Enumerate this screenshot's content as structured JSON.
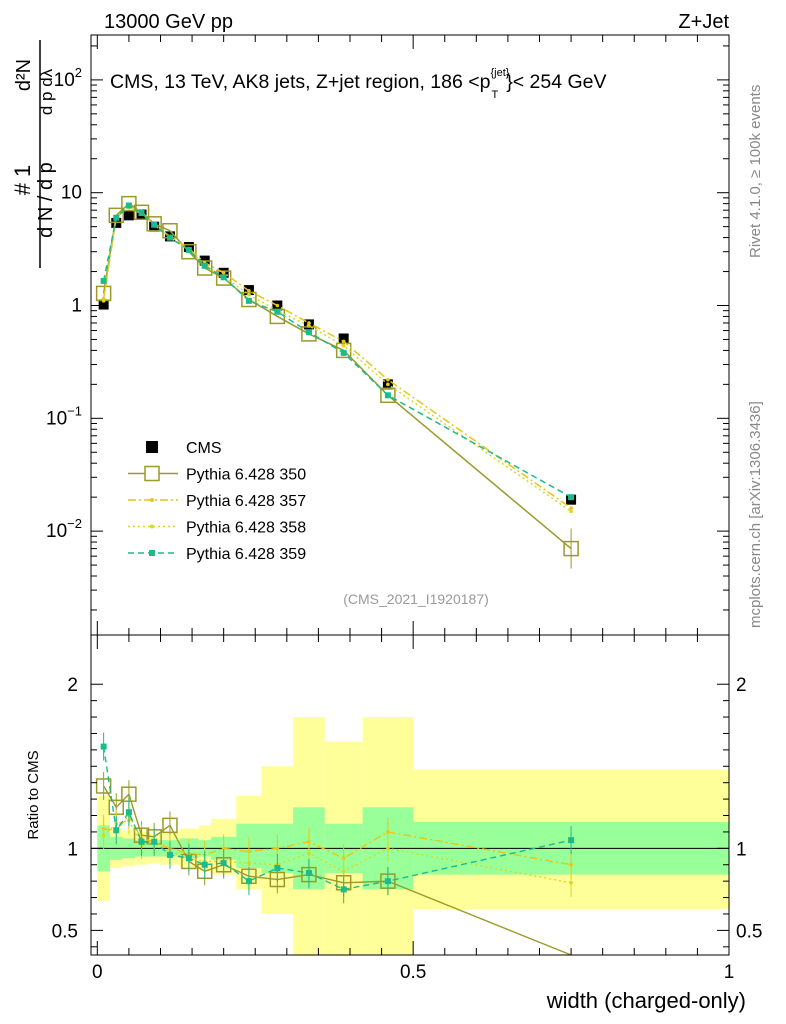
{
  "header": {
    "left": "13000 GeV pp",
    "right": "Z+Jet"
  },
  "side_labels": {
    "rivet": "Rivet 4.1.0, ≥ 100k events",
    "source": "mcplots.cern.ch [arXiv:1306.3436]"
  },
  "chart_data": [
    {
      "type": "scatter",
      "panel": "main",
      "title": "CMS, 13 TeV, AK8 jets, Z+jet region, 186 <p_T^{jet}< 254 GeV",
      "title_parts": {
        "main": "CMS, 13 TeV, AK8 jets, Z+jet region, 186 <p",
        "sup": "{jet}",
        "sub": "T",
        "tail": "}< 254 GeV"
      },
      "analysis_tag": "(CMS_2021_I1920187)",
      "ylabel": "1/(dN/dp_T) d^2N/(dp_T dλ)",
      "yscale": "log",
      "ylim": [
        0.0012,
        250
      ],
      "xlim": [
        -0.01,
        1.0
      ],
      "y_ticks": [
        {
          "value": 0.01,
          "base": "10",
          "exp": "−2"
        },
        {
          "value": 0.1,
          "base": "10",
          "exp": "−1"
        },
        {
          "value": 1,
          "label": "1"
        },
        {
          "value": 10,
          "label": "10"
        },
        {
          "value": 100,
          "base": "10",
          "exp": "2"
        }
      ],
      "x": [
        0.01,
        0.03,
        0.05,
        0.07,
        0.09,
        0.115,
        0.145,
        0.17,
        0.2,
        0.24,
        0.285,
        0.335,
        0.39,
        0.46,
        0.75
      ],
      "series": [
        {
          "name": "CMS",
          "color": "#000000",
          "style": "data",
          "values": [
            1.02,
            5.4,
            6.3,
            6.4,
            5.0,
            4.1,
            3.3,
            2.5,
            1.95,
            1.37,
            1.0,
            0.68,
            0.51,
            0.2,
            0.019
          ]
        },
        {
          "name": "Pythia 6.428 350",
          "color": "#9a9a28",
          "style": "solid-open-square",
          "values": [
            1.28,
            6.3,
            8.0,
            6.7,
            5.3,
            4.6,
            3.0,
            2.15,
            1.75,
            1.13,
            0.8,
            0.56,
            0.4,
            0.16,
            0.007
          ]
        },
        {
          "name": "Pythia 6.428 357",
          "color": "#e6c619",
          "style": "dashdot",
          "values": [
            1.15,
            6.0,
            7.6,
            6.8,
            5.2,
            4.1,
            3.2,
            2.4,
            1.95,
            1.35,
            1.0,
            0.7,
            0.48,
            0.22,
            0.016
          ]
        },
        {
          "name": "Pythia 6.428 358",
          "color": "#d8d820",
          "style": "dotted",
          "values": [
            1.1,
            6.2,
            7.4,
            6.5,
            5.2,
            4.0,
            3.1,
            2.3,
            1.8,
            1.25,
            0.9,
            0.66,
            0.44,
            0.2,
            0.015
          ]
        },
        {
          "name": "Pythia 6.428 359",
          "color": "#1abc8c",
          "style": "dashed",
          "values": [
            1.65,
            6.0,
            7.7,
            6.6,
            5.2,
            4.0,
            3.1,
            2.25,
            1.78,
            1.1,
            0.88,
            0.58,
            0.38,
            0.16,
            0.02
          ]
        }
      ]
    },
    {
      "type": "scatter",
      "panel": "ratio",
      "ylabel": "Ratio to CMS",
      "xlabel": "width (charged-only)",
      "ylim": [
        0.35,
        2.3
      ],
      "xlim": [
        -0.01,
        1.0
      ],
      "y_ticks": [
        0.5,
        1,
        2
      ],
      "x_ticks": [
        0,
        0.5,
        1
      ],
      "x_tick_labels": [
        "0",
        "0.5",
        "1"
      ],
      "reference_line": 1,
      "uncertainty_bands": {
        "edges": [
          0.0,
          0.02,
          0.04,
          0.06,
          0.08,
          0.1,
          0.13,
          0.16,
          0.18,
          0.22,
          0.26,
          0.31,
          0.36,
          0.42,
          0.5,
          1.0
        ],
        "stat": {
          "color": "#99ff99",
          "low": [
            0.86,
            0.93,
            0.94,
            0.95,
            0.95,
            0.95,
            0.94,
            0.95,
            0.93,
            0.88,
            0.85,
            0.75,
            0.85,
            0.75,
            0.84
          ],
          "high": [
            1.14,
            1.07,
            1.06,
            1.05,
            1.05,
            1.05,
            1.06,
            1.05,
            1.07,
            1.15,
            1.15,
            1.25,
            1.15,
            1.25,
            1.16
          ]
        },
        "syst": {
          "color": "#ffff99",
          "low": [
            0.68,
            0.88,
            0.89,
            0.9,
            0.91,
            0.9,
            0.88,
            0.86,
            0.84,
            0.75,
            0.6,
            0.35,
            0.35,
            0.35,
            0.63
          ],
          "high": [
            1.32,
            1.12,
            1.11,
            1.1,
            1.09,
            1.1,
            1.12,
            1.14,
            1.18,
            1.32,
            1.5,
            1.8,
            1.65,
            1.8,
            1.48
          ]
        }
      },
      "series": [
        {
          "name": "Pythia 6.428 350",
          "color": "#9a9a28",
          "values": [
            1.38,
            1.25,
            1.33,
            1.08,
            1.07,
            1.14,
            0.92,
            0.86,
            0.9,
            0.83,
            0.81,
            0.84,
            0.79,
            0.8,
            0.3
          ]
        },
        {
          "name": "Pythia 6.428 357",
          "color": "#e6c619",
          "values": [
            1.12,
            1.11,
            1.2,
            1.06,
            1.04,
            1.0,
            0.97,
            0.96,
            1.0,
            0.98,
            1.0,
            1.04,
            0.94,
            1.1,
            0.9
          ]
        },
        {
          "name": "Pythia 6.428 358",
          "color": "#d8d820",
          "values": [
            1.08,
            1.15,
            1.17,
            1.02,
            1.04,
            0.98,
            0.94,
            0.92,
            0.92,
            0.91,
            0.9,
            0.97,
            0.86,
            1.0,
            0.79
          ]
        },
        {
          "name": "Pythia 6.428 359",
          "color": "#1abc8c",
          "values": [
            1.62,
            1.11,
            1.22,
            1.04,
            1.04,
            0.96,
            0.94,
            0.9,
            0.91,
            0.8,
            0.88,
            0.85,
            0.75,
            0.8,
            1.05
          ]
        }
      ]
    }
  ]
}
